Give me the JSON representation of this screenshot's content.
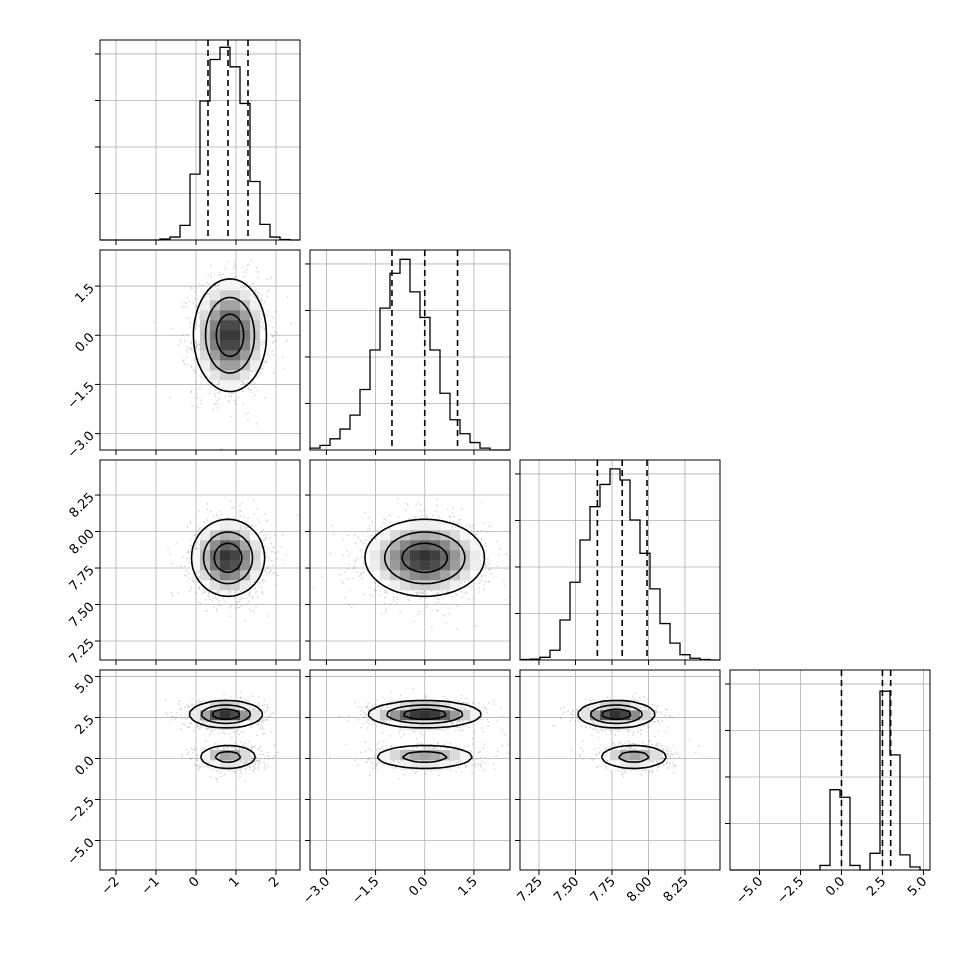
{
  "chart_data": {
    "type": "corner",
    "grid_on": true,
    "colors": {
      "points": "#7f7f7f",
      "density_dark": "#303030",
      "lines": "#000000",
      "grid": "#b0b0b0"
    },
    "parameters": [
      {
        "id": "p0",
        "range": [
          -2.4,
          2.6
        ],
        "ticks": [
          -2,
          -1,
          0,
          1,
          2
        ],
        "tick_labels": [
          "−2",
          "−1",
          "0",
          "1",
          "2"
        ]
      },
      {
        "id": "p1",
        "range": [
          -3.5,
          2.6
        ],
        "ticks": [
          -3.0,
          -1.5,
          0.0,
          1.5
        ],
        "tick_labels": [
          "−3.0",
          "−1.5",
          "0.0",
          "1.5"
        ]
      },
      {
        "id": "p2",
        "range": [
          7.12,
          8.49
        ],
        "ticks": [
          7.25,
          7.5,
          7.75,
          8.0,
          8.25
        ],
        "tick_labels": [
          "7.25",
          "7.50",
          "7.75",
          "8.00",
          "8.25"
        ]
      },
      {
        "id": "p3",
        "range": [
          -6.8,
          5.4
        ],
        "ticks": [
          -5.0,
          -2.5,
          0.0,
          2.5,
          5.0
        ],
        "tick_labels": [
          "−5.0",
          "−2.5",
          "0.0",
          "2.5",
          "5.0"
        ]
      }
    ],
    "histograms": [
      {
        "param": "p0",
        "edges": [
          -2.4,
          -2.15,
          -1.9,
          -1.65,
          -1.4,
          -1.15,
          -0.9,
          -0.65,
          -0.4,
          -0.15,
          0.1,
          0.35,
          0.6,
          0.85,
          1.1,
          1.35,
          1.6,
          1.85,
          2.1,
          2.35,
          2.6
        ],
        "counts": [
          0,
          0,
          0,
          0,
          0,
          0,
          2,
          6,
          30,
          135,
          285,
          370,
          395,
          355,
          280,
          120,
          32,
          6,
          1,
          0
        ],
        "ymax": 410,
        "quantiles": [
          0.3,
          0.8,
          1.3
        ]
      },
      {
        "param": "p1",
        "edges": [
          -3.5,
          -3.195,
          -2.89,
          -2.585,
          -2.28,
          -1.975,
          -1.67,
          -1.365,
          -1.06,
          -0.755,
          -0.45,
          -0.145,
          0.16,
          0.465,
          0.77,
          1.075,
          1.38,
          1.685,
          1.99,
          2.295,
          2.6
        ],
        "counts": [
          4,
          10,
          24,
          45,
          75,
          130,
          215,
          305,
          380,
          410,
          340,
          285,
          215,
          122,
          65,
          35,
          16,
          4,
          0,
          0
        ],
        "ymax": 430,
        "quantiles": [
          -1.0,
          0.0,
          1.0
        ]
      },
      {
        "param": "p2",
        "edges": [
          7.12,
          7.1885,
          7.257,
          7.3255,
          7.394,
          7.4625,
          7.531,
          7.5995,
          7.668,
          7.7365,
          7.805,
          7.8735,
          7.942,
          8.0105,
          8.079,
          8.1475,
          8.216,
          8.2845,
          8.353,
          8.4215,
          8.49
        ],
        "counts": [
          1,
          2,
          6,
          22,
          90,
          175,
          270,
          345,
          395,
          430,
          405,
          315,
          240,
          160,
          82,
          38,
          12,
          4,
          1,
          0
        ],
        "ymax": 450,
        "quantiles": [
          7.65,
          7.82,
          7.99
        ]
      },
      {
        "param": "p3",
        "edges": [
          -6.8,
          -6.19,
          -5.58,
          -4.97,
          -4.36,
          -3.75,
          -3.14,
          -2.53,
          -1.92,
          -1.31,
          -0.7,
          -0.09,
          0.52,
          1.13,
          1.74,
          2.35,
          2.96,
          3.57,
          4.18,
          4.79,
          5.4
        ],
        "counts": [
          0,
          0,
          0,
          0,
          0,
          0,
          0,
          0,
          0,
          15,
          265,
          240,
          15,
          0,
          55,
          590,
          380,
          50,
          10,
          0
        ],
        "ymax": 660,
        "quantiles": [
          0.0,
          2.5,
          3.0
        ]
      }
    ],
    "pair_densities": [
      {
        "x": "p0",
        "y": "p1",
        "blobs": [
          {
            "cx": 0.85,
            "cy": 0.0,
            "sx": 0.45,
            "sy": 0.85,
            "weight": 1.0
          }
        ]
      },
      {
        "x": "p0",
        "y": "p2",
        "blobs": [
          {
            "cx": 0.8,
            "cy": 7.82,
            "sx": 0.45,
            "sy": 0.13,
            "weight": 1.0
          }
        ]
      },
      {
        "x": "p1",
        "y": "p2",
        "blobs": [
          {
            "cx": 0.0,
            "cy": 7.82,
            "sx": 0.9,
            "sy": 0.13,
            "weight": 1.0
          }
        ]
      },
      {
        "x": "p0",
        "y": "p3",
        "blobs": [
          {
            "cx": 0.75,
            "cy": 2.7,
            "sx": 0.45,
            "sy": 0.4,
            "weight": 0.65
          },
          {
            "cx": 0.8,
            "cy": 0.1,
            "sx": 0.4,
            "sy": 0.4,
            "weight": 0.35
          }
        ]
      },
      {
        "x": "p1",
        "y": "p3",
        "blobs": [
          {
            "cx": 0.0,
            "cy": 2.7,
            "sx": 0.85,
            "sy": 0.4,
            "weight": 0.65
          },
          {
            "cx": 0.0,
            "cy": 0.1,
            "sx": 0.85,
            "sy": 0.4,
            "weight": 0.35
          }
        ]
      },
      {
        "x": "p2",
        "y": "p3",
        "blobs": [
          {
            "cx": 7.78,
            "cy": 2.7,
            "sx": 0.13,
            "sy": 0.4,
            "weight": 0.65
          },
          {
            "cx": 7.9,
            "cy": 0.1,
            "sx": 0.13,
            "sy": 0.4,
            "weight": 0.35
          }
        ]
      }
    ]
  }
}
